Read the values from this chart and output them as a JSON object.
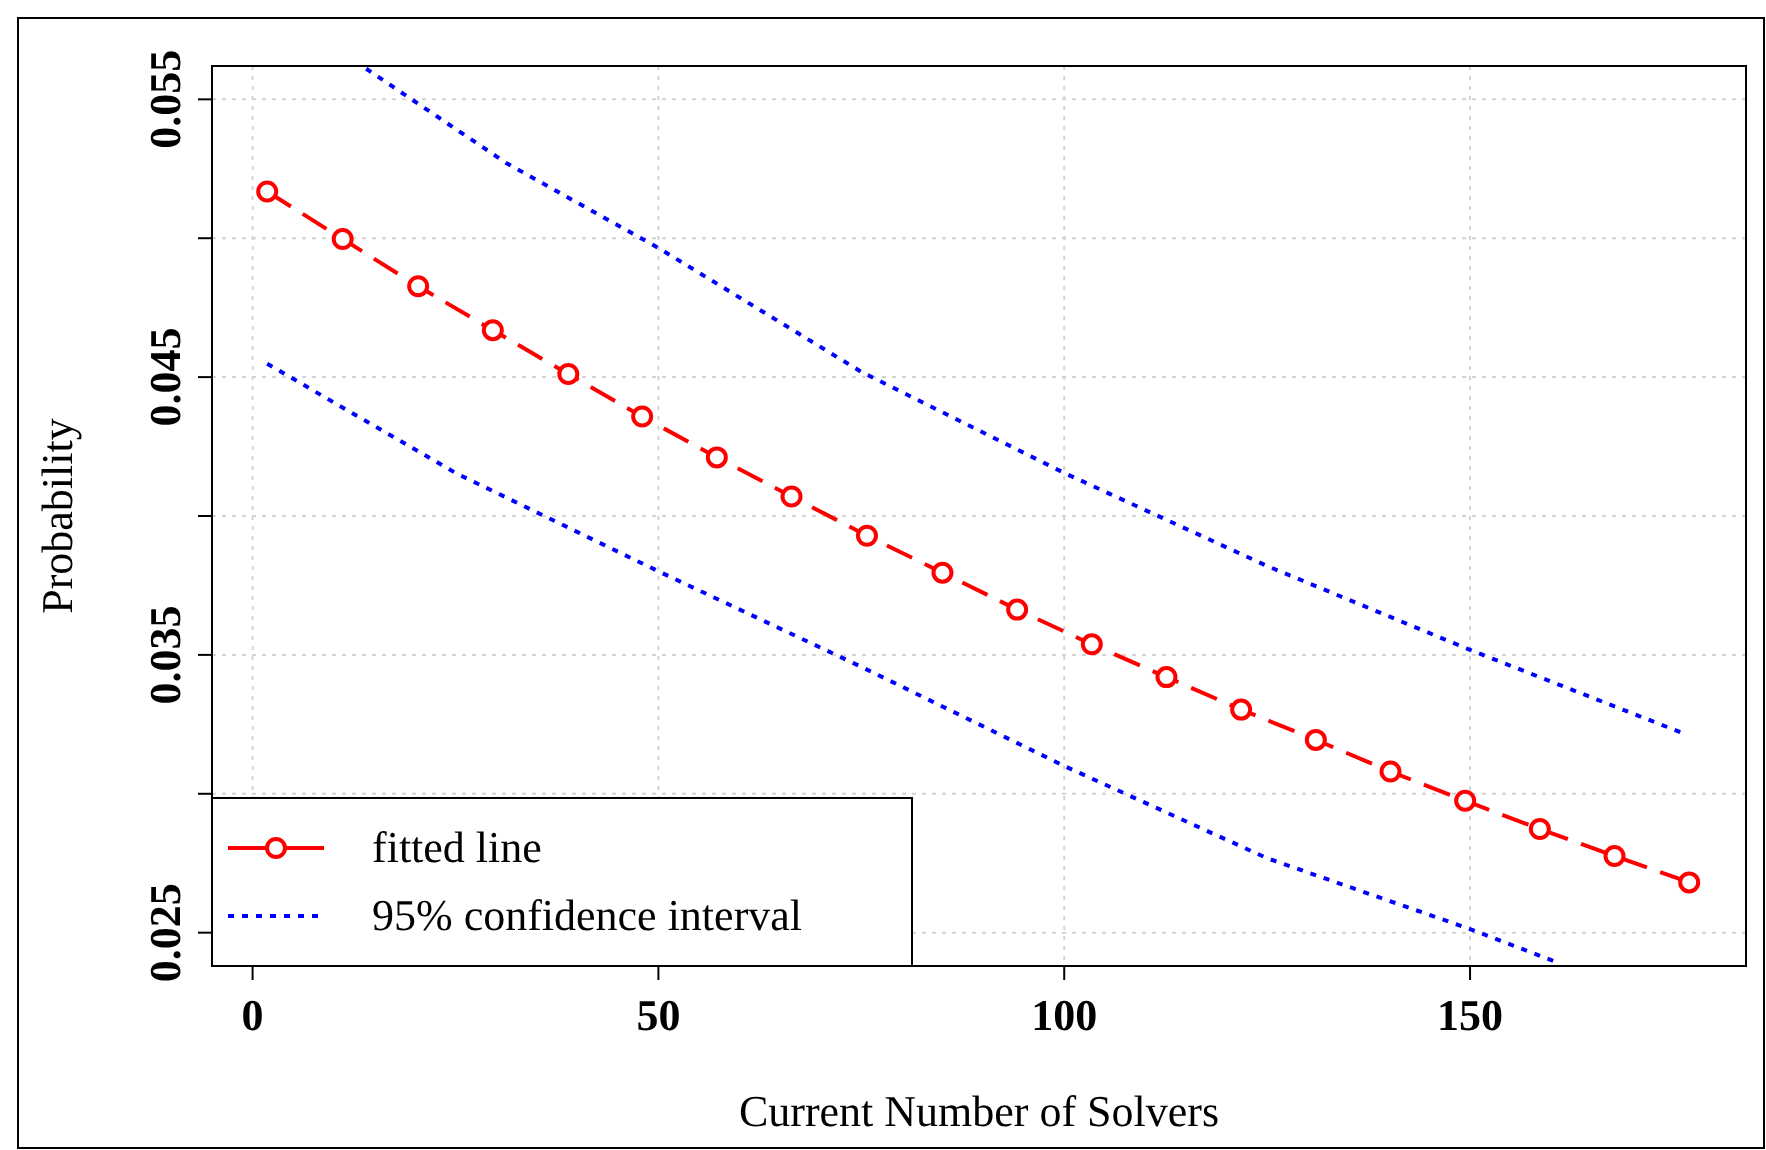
{
  "chart_data": {
    "type": "line",
    "xlabel": "Current Number of Solvers",
    "ylabel": "Probability",
    "xlim": [
      -5,
      184
    ],
    "ylim": [
      0.0238,
      0.0562
    ],
    "xticks": [
      0,
      50,
      100,
      150
    ],
    "yticks": [
      0.025,
      {
        "value": 0.03,
        "label": null
      },
      0.035,
      {
        "value": 0.04,
        "label": null
      },
      0.045,
      {
        "value": 0.05,
        "label": null
      },
      0.055
    ],
    "grid": true,
    "legend": "bottom left",
    "series": [
      {
        "name": "fitted line",
        "color": "#ff0000",
        "marker": "circle",
        "line_style": "dashed",
        "x": [
          1.8,
          11.1,
          20.4,
          29.6,
          38.9,
          48.0,
          57.2,
          66.4,
          75.7,
          85.0,
          94.2,
          103.4,
          112.6,
          121.8,
          131.0,
          140.2,
          149.4,
          158.6,
          167.8,
          177.0
        ],
        "values": [
          0.05168,
          0.04997,
          0.04827,
          0.04669,
          0.04511,
          0.04358,
          0.04211,
          0.0407,
          0.03929,
          0.03796,
          0.03663,
          0.03538,
          0.0342,
          0.03303,
          0.03194,
          0.0308,
          0.02975,
          0.02873,
          0.02776,
          0.02681
        ]
      },
      {
        "name": "95% confidence interval",
        "color": "#0000ff",
        "marker": "none",
        "line_style": "dotted",
        "x": [
          14,
          31.3,
          50,
          75,
          100,
          125,
          150,
          176.6
        ],
        "values": [
          0.0561,
          0.0527,
          0.04965,
          0.04519,
          0.04155,
          0.0382,
          0.03518,
          0.03214
        ]
      },
      {
        "color": "#0000ff",
        "marker": "none",
        "line_style": "dotted",
        "x": [
          1.8,
          25,
          50,
          75,
          100,
          125,
          150,
          161
        ],
        "values": [
          0.04548,
          0.04155,
          0.03801,
          0.03457,
          0.031,
          0.02768,
          0.02513,
          0.0239
        ]
      }
    ]
  }
}
